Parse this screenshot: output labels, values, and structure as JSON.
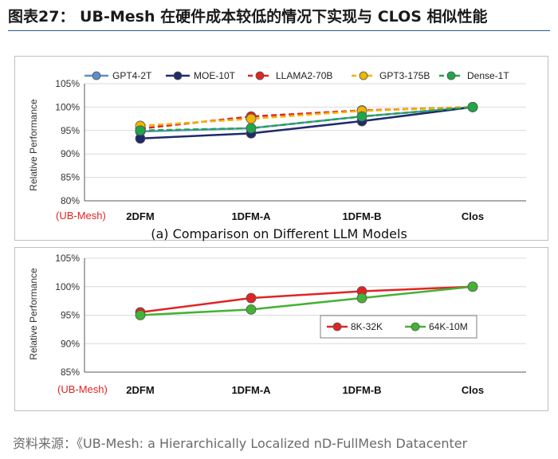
{
  "header": {
    "title": "图表27： UB-Mesh 在硬件成本较低的情况下实现与 CLOS 相似性能"
  },
  "footer": {
    "source": "资料来源：《UB-Mesh: a Hierarchically Localized nD-FullMesh Datacenter"
  },
  "colors": {
    "gpt4": "#5b8fc7",
    "moe": "#1f2a6b",
    "llama": "#e02424",
    "gpt3": "#f2b400",
    "dense": "#1fa64a",
    "k8": "#e02424",
    "k64": "#44b234",
    "axis": "#595959",
    "grid": "#d9d9d9",
    "ubmesh": "#e02424"
  },
  "chart_data": [
    {
      "type": "line",
      "title": "(a)  Comparison on Different LLM Models",
      "xlabel": "",
      "ylabel": "Relative Performance",
      "annotation": "(UB-Mesh)",
      "categories": [
        "2DFM",
        "1DFM-A",
        "1DFM-B",
        "Clos"
      ],
      "ylim": [
        80,
        105
      ],
      "yticks": [
        "80%",
        "85%",
        "90%",
        "95%",
        "100%",
        "105%"
      ],
      "legend_position": "top",
      "series": [
        {
          "name": "GPT4-2T",
          "style": "solid",
          "values": [
            94.8,
            95.5,
            98.0,
            100
          ]
        },
        {
          "name": "MOE-10T",
          "style": "solid",
          "values": [
            93.3,
            94.4,
            97.0,
            100
          ]
        },
        {
          "name": "LLAMA2-70B",
          "style": "dashed",
          "values": [
            95.4,
            98.0,
            99.3,
            100
          ]
        },
        {
          "name": "GPT3-175B",
          "style": "dashed",
          "values": [
            96.0,
            97.5,
            99.2,
            100
          ]
        },
        {
          "name": "Dense-1T",
          "style": "dashed",
          "values": [
            95.0,
            95.5,
            98.0,
            100
          ]
        }
      ]
    },
    {
      "type": "line",
      "title": "",
      "xlabel": "",
      "ylabel": "Relative Performance",
      "annotation": "(UB-Mesh)",
      "categories": [
        "2DFM",
        "1DFM-A",
        "1DFM-B",
        "Clos"
      ],
      "ylim": [
        85,
        105
      ],
      "yticks": [
        "85%",
        "90%",
        "95%",
        "100%",
        "105%"
      ],
      "legend_position": "lower-right",
      "series": [
        {
          "name": "8K-32K",
          "style": "solid",
          "values": [
            95.5,
            98.0,
            99.2,
            100
          ]
        },
        {
          "name": "64K-10M",
          "style": "solid",
          "values": [
            95.0,
            96.0,
            98.0,
            100
          ]
        }
      ]
    }
  ]
}
